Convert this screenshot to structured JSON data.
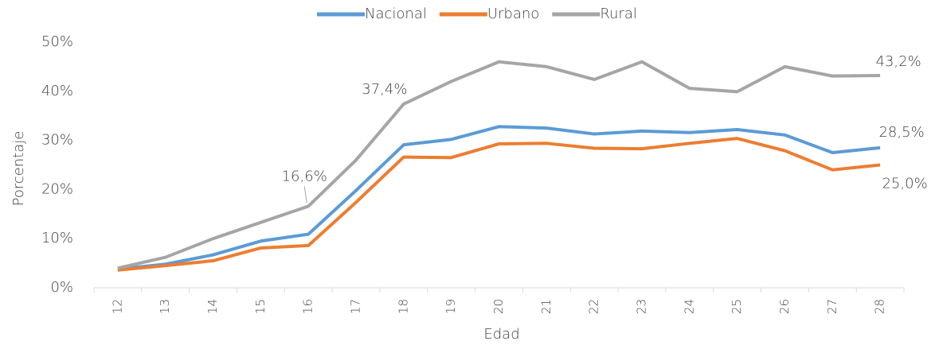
{
  "chart_data": {
    "type": "line",
    "x_label": "Edad",
    "y_label": "Porcentaje",
    "categories": [
      "12",
      "13",
      "14",
      "15",
      "16",
      "17",
      "18",
      "19",
      "20",
      "21",
      "22",
      "23",
      "24",
      "25",
      "26",
      "27",
      "28"
    ],
    "series": [
      {
        "name": "Nacional",
        "color": "#5b9bd5",
        "values": [
          3.8,
          4.8,
          6.7,
          9.5,
          10.9,
          19.8,
          29.1,
          30.2,
          32.8,
          32.5,
          31.3,
          31.9,
          31.6,
          32.2,
          31.1,
          27.5,
          28.5
        ],
        "value_labels": [
          null,
          null,
          null,
          null,
          null,
          null,
          null,
          null,
          null,
          null,
          null,
          null,
          null,
          null,
          null,
          null,
          "28,5%"
        ]
      },
      {
        "name": "Urbano",
        "color": "#ed7d31",
        "values": [
          3.6,
          4.5,
          5.5,
          8.1,
          8.6,
          17.4,
          26.6,
          26.5,
          29.3,
          29.4,
          28.4,
          28.3,
          29.4,
          30.4,
          27.9,
          24.0,
          25.0
        ],
        "value_labels": [
          null,
          null,
          null,
          null,
          null,
          null,
          null,
          null,
          null,
          null,
          null,
          null,
          null,
          null,
          null,
          null,
          "25,0%"
        ]
      },
      {
        "name": "Rural",
        "color": "#a5a5a5",
        "values": [
          4.0,
          6.2,
          10.0,
          13.3,
          16.6,
          26.0,
          37.4,
          42.0,
          46.0,
          45.0,
          42.4,
          46.0,
          40.6,
          39.9,
          45.0,
          43.1,
          43.2
        ],
        "value_labels": [
          null,
          null,
          null,
          null,
          "16,6%",
          null,
          "37,4%",
          null,
          null,
          null,
          null,
          null,
          null,
          null,
          null,
          null,
          "43,2%"
        ]
      }
    ],
    "ylim": [
      0,
      50
    ],
    "yticks": [
      {
        "value": 0,
        "label": "0%"
      },
      {
        "value": 10,
        "label": "10%"
      },
      {
        "value": 20,
        "label": "20%"
      },
      {
        "value": 30,
        "label": "30%"
      },
      {
        "value": 40,
        "label": "40%"
      },
      {
        "value": 50,
        "label": "50%"
      }
    ],
    "grid": false,
    "legend": "top"
  }
}
